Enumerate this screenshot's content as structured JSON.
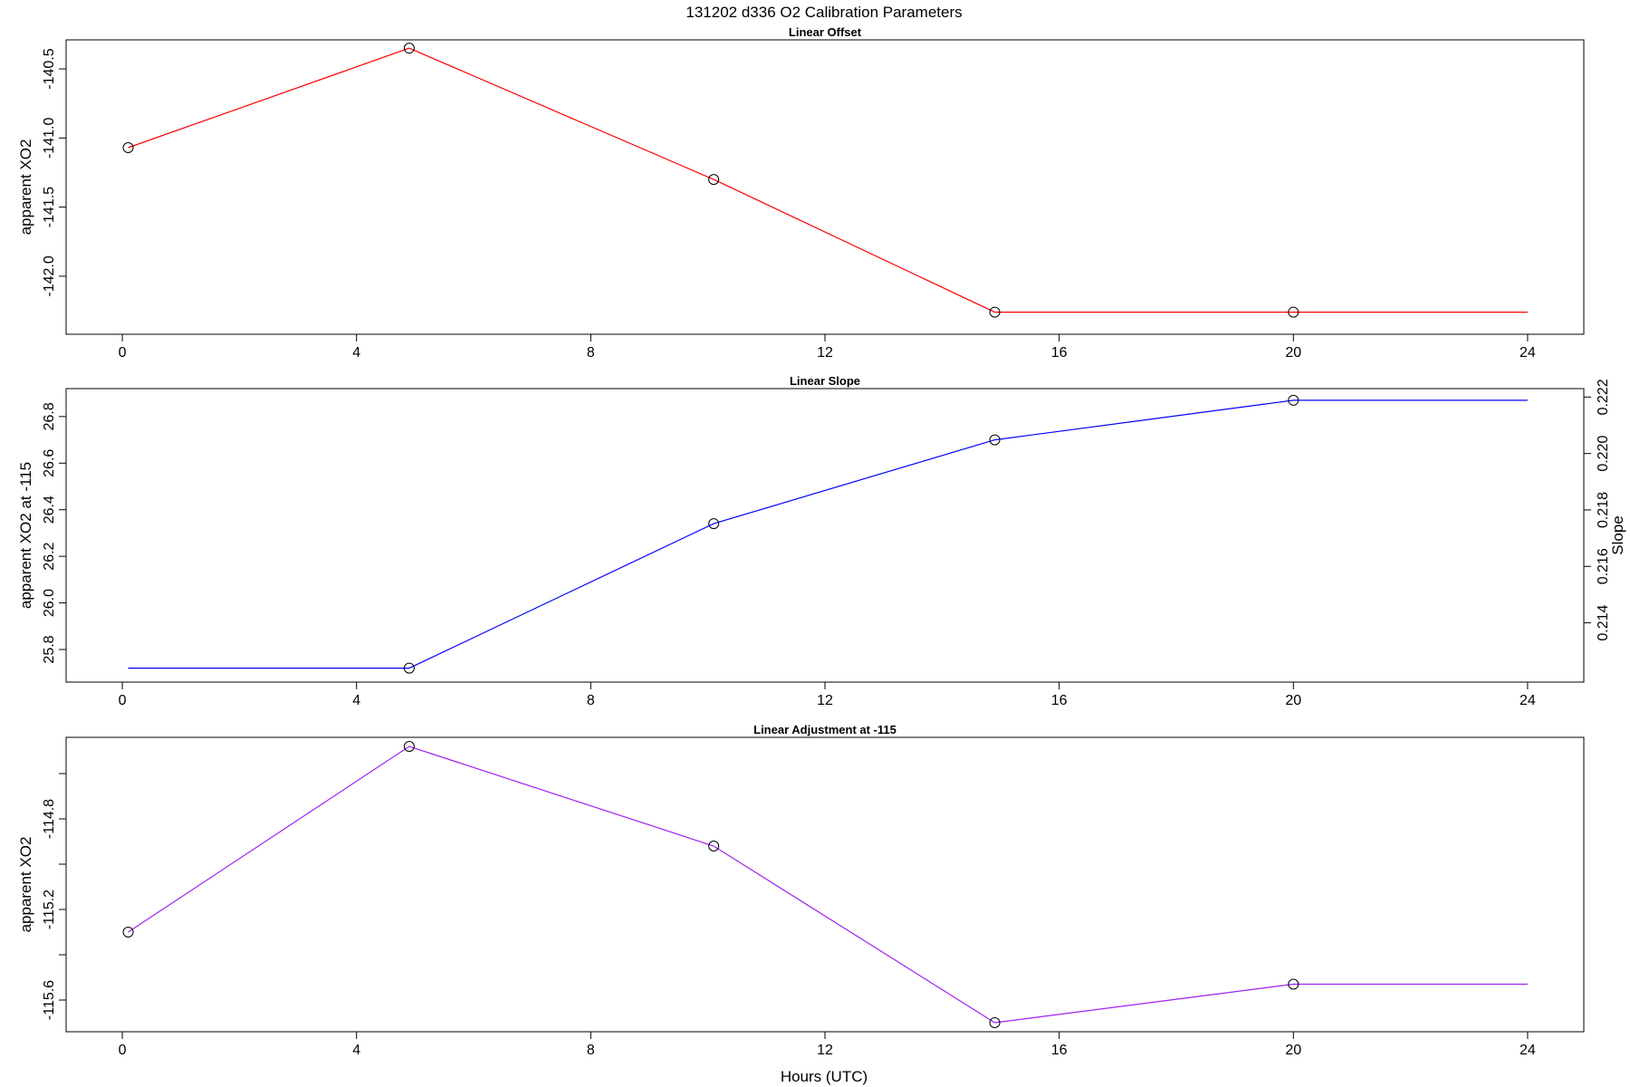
{
  "title": "131202   d336   O2 Calibration Parameters",
  "xlabel": "Hours (UTC)",
  "chart_data": [
    {
      "type": "line",
      "title": "Linear Offset",
      "ylabel": "apparent XO2",
      "xlim": [
        -0.96,
        24.96
      ],
      "ylim": [
        -142.42,
        -140.29
      ],
      "xticks": [
        0,
        4,
        8,
        12,
        16,
        20,
        24
      ],
      "yticks": [
        -140.5,
        -141.0,
        -141.5,
        -142.0
      ],
      "yticks_minor": [],
      "color": "#ff0000",
      "x": [
        0.1,
        4.9,
        10.1,
        14.9,
        20.0,
        24.0
      ],
      "y": [
        -141.07,
        -140.35,
        -141.3,
        -142.26,
        -142.26,
        -142.26
      ],
      "markers": [
        true,
        true,
        true,
        true,
        true,
        false
      ],
      "grid": false,
      "legend": "none"
    },
    {
      "type": "line",
      "title": "Linear Slope",
      "ylabel": "apparent XO2 at -115",
      "ylabel_right": "Slope",
      "xlim": [
        -0.96,
        24.96
      ],
      "ylim": [
        25.66,
        26.92
      ],
      "xticks": [
        0,
        4,
        8,
        12,
        16,
        20,
        24
      ],
      "yticks": [
        25.8,
        26.0,
        26.2,
        26.4,
        26.6,
        26.8
      ],
      "yticks_minor": [],
      "right_axis": {
        "ylim": [
          0.2119,
          0.2223
        ],
        "yticks": [
          0.214,
          0.216,
          0.218,
          0.22,
          0.222
        ],
        "ytick_labels": [
          "0.214",
          "0.216",
          "0.218",
          "0.220",
          "0.222"
        ]
      },
      "color": "#0000ff",
      "x": [
        0.1,
        4.9,
        10.1,
        14.9,
        20.0,
        24.0
      ],
      "y": [
        25.72,
        25.72,
        26.34,
        26.7,
        26.87,
        26.87
      ],
      "markers": [
        false,
        true,
        true,
        true,
        true,
        false
      ],
      "grid": false,
      "legend": "none"
    },
    {
      "type": "line",
      "title": "Linear Adjustment at -115",
      "ylabel": "apparent XO2",
      "xlim": [
        -0.96,
        24.96
      ],
      "ylim": [
        -115.74,
        -114.44
      ],
      "xticks": [
        0,
        4,
        8,
        12,
        16,
        20,
        24
      ],
      "yticks": [
        -114.8,
        -115.2,
        -115.6
      ],
      "yticks_minor": [
        -114.6,
        -115.0,
        -115.4
      ],
      "color": "#a020f0",
      "x": [
        0.1,
        4.9,
        10.1,
        14.9,
        20.0,
        24.0
      ],
      "y": [
        -115.3,
        -114.48,
        -114.92,
        -115.7,
        -115.53,
        -115.53
      ],
      "markers": [
        true,
        true,
        true,
        true,
        true,
        false
      ],
      "grid": false,
      "legend": "none"
    }
  ]
}
